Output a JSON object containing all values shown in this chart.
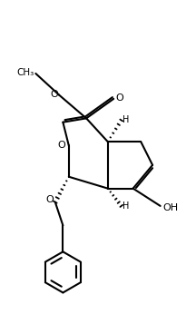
{
  "background": "#ffffff",
  "line_color": "#000000",
  "line_width": 1.5,
  "fig_width": 2.16,
  "fig_height": 3.68,
  "dpi": 100,
  "xlim": [
    0,
    10
  ],
  "ylim": [
    0,
    17
  ]
}
